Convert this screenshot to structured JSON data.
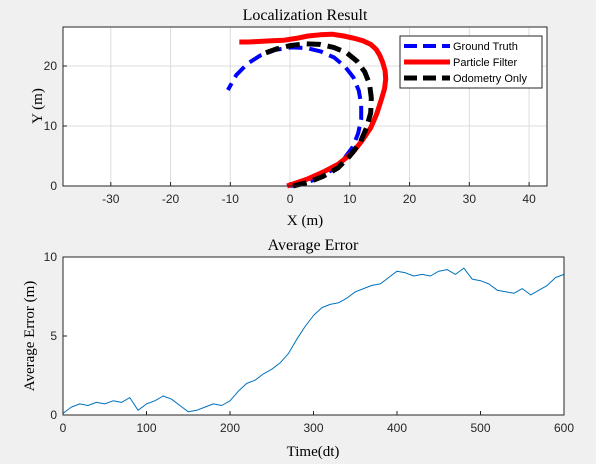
{
  "chart_data": [
    {
      "type": "line",
      "title": "Localization Result",
      "xlabel": "X (m)",
      "ylabel": "Y (m)",
      "xlim": [
        -38,
        43
      ],
      "ylim": [
        0,
        26.5
      ],
      "xticks": [
        -30,
        -20,
        -10,
        0,
        10,
        20,
        30,
        40
      ],
      "yticks": [
        0,
        10,
        20
      ],
      "grid": true,
      "legend_position": "top-right",
      "series": [
        {
          "name": "Ground Truth",
          "color": "#0000ff",
          "style": "dashed",
          "x": [
            0.0,
            2.6,
            5.0,
            7.2,
            9.0,
            10.5,
            11.4,
            11.9,
            11.9,
            11.5,
            10.6,
            9.2,
            7.4,
            5.2,
            2.8,
            0.2,
            -2.4,
            -4.9,
            -7.1,
            -9.0,
            -10.4
          ],
          "y": [
            0.0,
            0.5,
            1.4,
            2.8,
            4.5,
            6.5,
            8.8,
            11.2,
            13.6,
            15.9,
            18.1,
            19.9,
            21.4,
            22.4,
            23.0,
            23.1,
            22.7,
            21.8,
            20.4,
            18.5,
            16.0
          ]
        },
        {
          "name": "Particle Filter",
          "color": "#ff0000",
          "style": "solid",
          "x": [
            -0.5,
            1.0,
            3.0,
            5.5,
            8.0,
            10.5,
            12.0,
            13.5,
            14.5,
            15.3,
            15.8,
            16.0,
            15.9,
            15.5,
            15.0,
            14.4,
            13.5,
            12.2,
            10.8,
            9.0,
            7.0,
            5.0,
            3.0,
            1.0,
            -1.0,
            -3.0,
            -5.0,
            -7.0,
            -8.5
          ],
          "y": [
            0.0,
            0.5,
            1.2,
            2.3,
            3.6,
            5.6,
            7.5,
            9.7,
            12.0,
            14.5,
            16.2,
            17.8,
            19.2,
            20.6,
            21.8,
            22.8,
            23.6,
            24.2,
            24.6,
            25.0,
            25.3,
            25.2,
            25.0,
            24.6,
            24.3,
            24.2,
            24.1,
            24.0,
            24.0
          ]
        },
        {
          "name": "Odometry Only",
          "color": "#000000",
          "style": "dashed",
          "x": [
            0.5,
            3.0,
            5.5,
            8.0,
            10.0,
            11.7,
            12.8,
            13.5,
            13.6,
            13.3,
            12.5,
            11.2,
            9.5,
            7.3,
            5.0,
            2.5,
            0.0,
            -2.4,
            -4.6
          ],
          "y": [
            0.0,
            0.6,
            1.6,
            3.0,
            5.0,
            7.2,
            9.7,
            12.2,
            14.7,
            17.0,
            19.0,
            20.8,
            22.2,
            23.1,
            23.6,
            23.7,
            23.4,
            22.8,
            22.0
          ]
        }
      ]
    },
    {
      "type": "line",
      "title": "Average Error",
      "xlabel": "Time(dt)",
      "ylabel": "Average Error (m)",
      "xlim": [
        0,
        600
      ],
      "ylim": [
        0,
        10
      ],
      "xticks": [
        0,
        100,
        200,
        300,
        400,
        500,
        600
      ],
      "yticks": [
        0,
        5,
        10
      ],
      "grid": false,
      "series": [
        {
          "color": "#0072bd",
          "x": [
            0,
            10,
            20,
            30,
            40,
            50,
            60,
            70,
            80,
            90,
            100,
            110,
            120,
            130,
            140,
            150,
            160,
            170,
            180,
            190,
            200,
            210,
            220,
            230,
            240,
            250,
            260,
            270,
            280,
            290,
            300,
            310,
            320,
            330,
            340,
            350,
            360,
            370,
            380,
            390,
            400,
            410,
            420,
            430,
            440,
            450,
            460,
            470,
            480,
            490,
            500,
            510,
            520,
            530,
            540,
            550,
            560,
            570,
            580,
            590,
            600
          ],
          "y": [
            0.1,
            0.5,
            0.7,
            0.6,
            0.8,
            0.7,
            0.9,
            0.8,
            1.1,
            0.3,
            0.7,
            0.9,
            1.2,
            1.0,
            0.6,
            0.2,
            0.3,
            0.5,
            0.7,
            0.6,
            0.9,
            1.5,
            2.0,
            2.2,
            2.6,
            2.9,
            3.3,
            3.9,
            4.8,
            5.6,
            6.3,
            6.8,
            7.0,
            7.1,
            7.4,
            7.8,
            8.0,
            8.2,
            8.3,
            8.7,
            9.1,
            9.0,
            8.8,
            8.9,
            8.8,
            9.1,
            9.2,
            8.9,
            9.3,
            8.6,
            8.5,
            8.3,
            7.9,
            7.8,
            7.7,
            8.0,
            7.6,
            7.9,
            8.2,
            8.7,
            8.9
          ]
        }
      ]
    }
  ]
}
